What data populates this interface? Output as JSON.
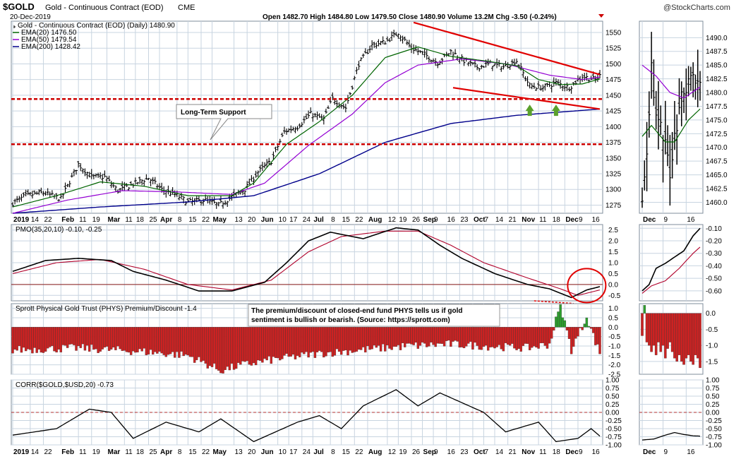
{
  "header": {
    "symbol": "$GOLD",
    "name": "Gold - Continuous Contract (EOD)",
    "exchange": "CME",
    "date": "20-Dec-2019",
    "stats_line": "Open 1482.70  High 1484.80  Low 1479.50  Close 1480.90  Volume 13.2M  Chg -3.50 (-0.24%)",
    "watermark": "@StockCharts.com"
  },
  "colors": {
    "price": "#000000",
    "ema20": "#006400",
    "ema50": "#9400d3",
    "ema200": "#00008b",
    "support": "#cc0000",
    "trendline": "#e00000",
    "bar_positive": "#2e9e2e",
    "bar_negative": "#cc2222",
    "arrow": "#5aa02c",
    "grid": "#c8d4e0"
  },
  "chart_data": [
    {
      "type": "line",
      "panel": "price",
      "title": "Gold - Continuous Contract (EOD) (Daily) 1480.90",
      "legend": [
        {
          "label": "Gold - Continuous Contract (EOD) (Daily) 1480.90",
          "color": "#000000"
        },
        {
          "label": "EMA(20) 1476.50",
          "color": "#006400"
        },
        {
          "label": "EMA(50) 1479.54",
          "color": "#9400d3"
        },
        {
          "label": "EMA(200) 1428.42",
          "color": "#00008b"
        }
      ],
      "ylim": [
        1262,
        1568
      ],
      "yticks": [
        1275,
        1300,
        1325,
        1350,
        1375,
        1400,
        1425,
        1450,
        1475,
        1500,
        1525,
        1550
      ],
      "x_labels": [
        "2019",
        "14",
        "22",
        "Feb",
        "11",
        "19",
        "Mar",
        "11",
        "18",
        "25",
        "Apr",
        "8",
        "15",
        "22",
        "May",
        "13",
        "20",
        "Jun",
        "10",
        "17",
        "24",
        "Jul",
        "8",
        "15",
        "22",
        "Aug",
        "12",
        "19",
        "26",
        "Sep",
        "9",
        "16",
        "23",
        "Oct",
        "7",
        "14",
        "21",
        "Nov",
        "11",
        "18",
        "Dec",
        "9",
        "16"
      ],
      "closes_keypoints": [
        [
          0,
          1278
        ],
        [
          6,
          1290
        ],
        [
          14,
          1295
        ],
        [
          22,
          1285
        ],
        [
          30,
          1340
        ],
        [
          36,
          1320
        ],
        [
          42,
          1320
        ],
        [
          48,
          1298
        ],
        [
          56,
          1310
        ],
        [
          62,
          1318
        ],
        [
          68,
          1300
        ],
        [
          74,
          1292
        ],
        [
          80,
          1280
        ],
        [
          88,
          1283
        ],
        [
          94,
          1275
        ],
        [
          100,
          1288
        ],
        [
          106,
          1300
        ],
        [
          112,
          1328
        ],
        [
          118,
          1345
        ],
        [
          124,
          1392
        ],
        [
          130,
          1400
        ],
        [
          136,
          1420
        ],
        [
          142,
          1412
        ],
        [
          146,
          1445
        ],
        [
          152,
          1430
        ],
        [
          158,
          1500
        ],
        [
          164,
          1530
        ],
        [
          170,
          1535
        ],
        [
          176,
          1550
        ],
        [
          182,
          1525
        ],
        [
          188,
          1515
        ],
        [
          194,
          1502
        ],
        [
          200,
          1520
        ],
        [
          206,
          1505
        ],
        [
          212,
          1495
        ],
        [
          218,
          1500
        ],
        [
          224,
          1495
        ],
        [
          230,
          1505
        ],
        [
          236,
          1465
        ],
        [
          242,
          1462
        ],
        [
          248,
          1470
        ],
        [
          254,
          1462
        ],
        [
          260,
          1480
        ],
        [
          266,
          1475
        ],
        [
          268,
          1481
        ]
      ],
      "ema20_keypoints": [
        [
          0,
          1272
        ],
        [
          20,
          1290
        ],
        [
          40,
          1312
        ],
        [
          60,
          1305
        ],
        [
          80,
          1290
        ],
        [
          100,
          1290
        ],
        [
          110,
          1310
        ],
        [
          125,
          1372
        ],
        [
          140,
          1408
        ],
        [
          155,
          1450
        ],
        [
          170,
          1510
        ],
        [
          185,
          1527
        ],
        [
          200,
          1512
        ],
        [
          215,
          1505
        ],
        [
          230,
          1497
        ],
        [
          240,
          1475
        ],
        [
          250,
          1467
        ],
        [
          260,
          1468
        ],
        [
          268,
          1476
        ]
      ],
      "ema50_keypoints": [
        [
          0,
          1262
        ],
        [
          25,
          1283
        ],
        [
          50,
          1298
        ],
        [
          75,
          1296
        ],
        [
          100,
          1292
        ],
        [
          115,
          1310
        ],
        [
          135,
          1370
        ],
        [
          155,
          1420
        ],
        [
          170,
          1470
        ],
        [
          185,
          1498
        ],
        [
          205,
          1508
        ],
        [
          225,
          1500
        ],
        [
          245,
          1482
        ],
        [
          260,
          1475
        ],
        [
          268,
          1479
        ]
      ],
      "ema200_keypoints": [
        [
          0,
          1262
        ],
        [
          40,
          1272
        ],
        [
          80,
          1280
        ],
        [
          110,
          1290
        ],
        [
          140,
          1325
        ],
        [
          170,
          1375
        ],
        [
          200,
          1405
        ],
        [
          230,
          1418
        ],
        [
          268,
          1428
        ]
      ],
      "annotations": [
        "Long-Term Support"
      ],
      "support_lines": [
        1444,
        1372
      ]
    },
    {
      "type": "line",
      "panel": "pmo",
      "title": "PMO(35,20,10) -0.10, -0.25",
      "ylim": [
        -0.75,
        2.75
      ],
      "yticks": [
        2.5,
        2.0,
        1.5,
        1.0,
        0.5,
        0.0,
        -0.5
      ],
      "ytick_labels": [
        "2.5",
        "2.0",
        "1.5",
        "1.0",
        "0.5",
        "0.0",
        "-0.5"
      ],
      "pmo_keypoints": [
        [
          0,
          0.6
        ],
        [
          15,
          1.1
        ],
        [
          30,
          1.2
        ],
        [
          45,
          1.1
        ],
        [
          55,
          0.6
        ],
        [
          70,
          0.2
        ],
        [
          85,
          -0.3
        ],
        [
          100,
          -0.3
        ],
        [
          115,
          0.1
        ],
        [
          125,
          1.0
        ],
        [
          135,
          2.0
        ],
        [
          145,
          2.4
        ],
        [
          160,
          2.1
        ],
        [
          175,
          2.6
        ],
        [
          185,
          2.5
        ],
        [
          195,
          1.8
        ],
        [
          205,
          1.2
        ],
        [
          220,
          0.5
        ],
        [
          235,
          0.0
        ],
        [
          245,
          -0.2
        ],
        [
          255,
          -0.6
        ],
        [
          262,
          -0.25
        ],
        [
          268,
          -0.1
        ]
      ],
      "signal_keypoints": [
        [
          0,
          0.5
        ],
        [
          20,
          1.0
        ],
        [
          40,
          1.15
        ],
        [
          60,
          0.7
        ],
        [
          80,
          0.0
        ],
        [
          100,
          -0.25
        ],
        [
          118,
          0.2
        ],
        [
          135,
          1.5
        ],
        [
          150,
          2.2
        ],
        [
          170,
          2.45
        ],
        [
          185,
          2.45
        ],
        [
          200,
          1.8
        ],
        [
          215,
          1.0
        ],
        [
          235,
          0.3
        ],
        [
          250,
          -0.2
        ],
        [
          258,
          -0.5
        ],
        [
          268,
          -0.25
        ]
      ],
      "annotation": "circle around recent PMO crossover"
    },
    {
      "type": "bar",
      "panel": "premium",
      "title": "Sprott Physical Gold Trust (PHYS) Premium/Discount -1.4",
      "annotation": "The premium/discount of closed-end fund PHYS tells us if gold sentiment is bullish or bearish. (Source: https://sprott.com)",
      "ylim": [
        -2.5,
        1.25
      ],
      "yticks": [
        1.0,
        0.5,
        0.0,
        -0.5,
        -1.0,
        -1.5,
        -2.0,
        -2.5
      ],
      "ytick_labels": [
        "1.0",
        "0.5",
        "0.0",
        "-0.5",
        "-1.0",
        "-1.5",
        "-2.0",
        "-2.5"
      ],
      "value_keypoints": [
        [
          0,
          -1.2
        ],
        [
          30,
          -1.1
        ],
        [
          60,
          -1.3
        ],
        [
          80,
          -1.5
        ],
        [
          95,
          -2.3
        ],
        [
          105,
          -2.0
        ],
        [
          120,
          -1.7
        ],
        [
          140,
          -1.4
        ],
        [
          160,
          -1.2
        ],
        [
          180,
          -1.0
        ],
        [
          200,
          -0.9
        ],
        [
          215,
          -1.0
        ],
        [
          235,
          -1.1
        ],
        [
          245,
          -0.9
        ],
        [
          250,
          1.2
        ],
        [
          255,
          -1.2
        ],
        [
          262,
          0.5
        ],
        [
          268,
          -1.4
        ]
      ]
    },
    {
      "type": "line",
      "panel": "corr",
      "title": "CORR($GOLD,$USD,20) -0.73",
      "ylim": [
        -1.0,
        1.0
      ],
      "yticks": [
        1.0,
        0.75,
        0.5,
        0.25,
        0.0,
        -0.25,
        -0.5,
        -0.75,
        -1.0
      ],
      "ytick_labels": [
        "1.00",
        "0.75",
        "0.50",
        "0.25",
        "0.00",
        "-0.25",
        "-0.50",
        "-0.75",
        "-1.00"
      ],
      "corr_keypoints": [
        [
          0,
          -0.7
        ],
        [
          20,
          -0.5
        ],
        [
          35,
          0.1
        ],
        [
          45,
          0.0
        ],
        [
          55,
          -0.8
        ],
        [
          70,
          -0.3
        ],
        [
          85,
          -0.6
        ],
        [
          95,
          -0.2
        ],
        [
          110,
          -0.9
        ],
        [
          120,
          -0.6
        ],
        [
          130,
          -0.3
        ],
        [
          140,
          -0.1
        ],
        [
          150,
          -0.5
        ],
        [
          160,
          0.2
        ],
        [
          175,
          0.7
        ],
        [
          185,
          0.2
        ],
        [
          195,
          0.6
        ],
        [
          205,
          0.3
        ],
        [
          215,
          0.0
        ],
        [
          225,
          -0.6
        ],
        [
          240,
          -0.3
        ],
        [
          248,
          -0.9
        ],
        [
          258,
          -0.8
        ],
        [
          264,
          -0.5
        ],
        [
          268,
          -0.73
        ]
      ]
    }
  ],
  "inset": {
    "x_labels": [
      "Dec",
      "9",
      "16"
    ],
    "price_yticks": [
      1490.0,
      1487.5,
      1485.0,
      1482.5,
      1480.0,
      1477.5,
      1475.0,
      1472.5,
      1470.0,
      1467.5,
      1465.0,
      1462.5,
      1460.0
    ],
    "price_ytick_labels": [
      "1490.0",
      "1487.5",
      "1485.0",
      "1482.5",
      "1480.0",
      "1477.5",
      "1475.0",
      "1472.5",
      "1470.0",
      "1467.5",
      "1465.0",
      "1462.5",
      "1460.0"
    ],
    "pmo_yticks": [
      -0.1,
      -0.2,
      -0.3,
      -0.4,
      -0.5,
      -0.6
    ],
    "pmo_ytick_labels": [
      "-0.10",
      "-0.20",
      "-0.30",
      "-0.40",
      "-0.50",
      "-0.60"
    ],
    "prem_yticks": [
      0.0,
      -0.5,
      -1.0,
      -1.5
    ],
    "prem_ytick_labels": [
      "0.0",
      "-0.5",
      "-1.0",
      "-1.5"
    ],
    "corr_ytick_labels": [
      "1.00",
      "0.75",
      "0.50",
      "0.25",
      "0.00",
      "-0.25",
      "-0.50",
      "-0.75",
      "-1.00"
    ]
  }
}
